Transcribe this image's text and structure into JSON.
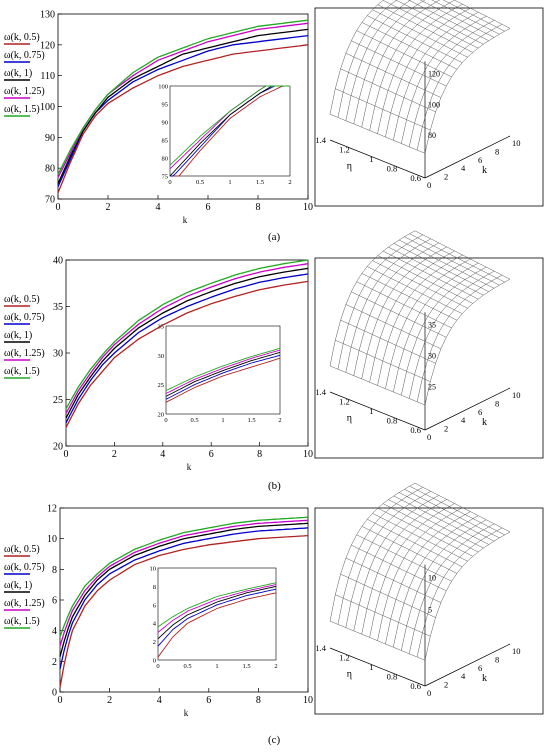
{
  "panel_labels": [
    "(a)",
    "(b)",
    "(c)"
  ],
  "legend_entries": [
    "ω(k, 0.5)",
    "ω(k, 0.75)",
    "ω(k, 1)",
    "ω(k, 1.25)",
    "ω(k, 1.5)"
  ],
  "series_colors": [
    "#b22222",
    "#0000cc",
    "#000000",
    "#cc00cc",
    "#22aa22"
  ],
  "surface_labels": {
    "a": {
      "eta": "η",
      "k": "k",
      "etaTicks": [
        "1.4",
        "1.2",
        "1",
        "0.8",
        "0.6"
      ],
      "kTicks": [
        "0",
        "2",
        "4",
        "6",
        "8",
        "10"
      ],
      "zTicks": [
        "120",
        "100",
        "80"
      ]
    },
    "b": {
      "eta": "η",
      "k": "k",
      "etaTicks": [
        "1.4",
        "1.2",
        "1",
        "0.8",
        "0.6"
      ],
      "kTicks": [
        "0",
        "2",
        "4",
        "6",
        "8",
        "10"
      ],
      "zTicks": [
        "35",
        "30",
        "25"
      ]
    },
    "c": {
      "eta": "η",
      "k": "k",
      "etaTicks": [
        "1.4",
        "1.2",
        "1",
        "0.8",
        "0.6"
      ],
      "kTicks": [
        "0",
        "2",
        "4",
        "6",
        "8",
        "10"
      ],
      "zTicks": [
        "10",
        "5"
      ]
    }
  },
  "chart_data": [
    {
      "type": "line",
      "panel": "(a)",
      "xlabel": "k",
      "xlim": [
        0,
        10
      ],
      "ylim": [
        70,
        130
      ],
      "xticks": [
        0,
        2,
        4,
        6,
        8,
        10
      ],
      "yticks": [
        70,
        80,
        90,
        100,
        110,
        120,
        130
      ],
      "x": [
        0,
        0.5,
        1,
        1.5,
        2,
        3,
        4,
        5,
        6,
        7,
        8,
        9,
        10
      ],
      "series": [
        {
          "name": "ω(k, 0.5)",
          "values": [
            72,
            82,
            91,
            97,
            101,
            106,
            110,
            113,
            115,
            117,
            118,
            119,
            120
          ]
        },
        {
          "name": "ω(k, 0.75)",
          "values": [
            74,
            83,
            92,
            98,
            102,
            108,
            112,
            115,
            118,
            120,
            121,
            122,
            123
          ]
        },
        {
          "name": "ω(k, 1)",
          "values": [
            75,
            84,
            92,
            98,
            103,
            109,
            113,
            117,
            119,
            121,
            123,
            124,
            125
          ]
        },
        {
          "name": "ω(k, 1.25)",
          "values": [
            77,
            85,
            93,
            99,
            104,
            110,
            115,
            118,
            121,
            123,
            125,
            126,
            127
          ]
        },
        {
          "name": "ω(k, 1.5)",
          "values": [
            78,
            86,
            93,
            99,
            104,
            111,
            116,
            119,
            122,
            124,
            126,
            127,
            128
          ]
        }
      ],
      "inset": {
        "xlim": [
          0,
          2
        ],
        "ylim": [
          75,
          100
        ],
        "xticks": [
          "0",
          "0.5",
          "1",
          "1.5",
          "2"
        ],
        "yticks": [
          "75",
          "80",
          "85",
          "90",
          "95",
          "100"
        ]
      }
    },
    {
      "type": "line",
      "panel": "(b)",
      "xlabel": "k",
      "xlim": [
        0,
        10
      ],
      "ylim": [
        20,
        40
      ],
      "xticks": [
        0,
        2,
        4,
        6,
        8,
        10
      ],
      "yticks": [
        20,
        25,
        30,
        35,
        40
      ],
      "x": [
        0,
        0.5,
        1,
        1.5,
        2,
        3,
        4,
        5,
        6,
        7,
        8,
        9,
        10
      ],
      "series": [
        {
          "name": "ω(k, 0.5)",
          "values": [
            22,
            24.5,
            26.5,
            28,
            29.5,
            31.5,
            33,
            34.3,
            35.3,
            36.1,
            36.8,
            37.3,
            37.7
          ]
        },
        {
          "name": "ω(k, 0.75)",
          "values": [
            22.5,
            25,
            27,
            28.7,
            30,
            32.2,
            33.8,
            35,
            36,
            36.9,
            37.6,
            38.1,
            38.5
          ]
        },
        {
          "name": "ω(k, 1)",
          "values": [
            23,
            25.5,
            27.4,
            29.1,
            30.5,
            32.7,
            34.3,
            35.6,
            36.6,
            37.5,
            38.2,
            38.7,
            39.1
          ]
        },
        {
          "name": "ω(k, 1.25)",
          "values": [
            23.5,
            25.9,
            27.8,
            29.5,
            30.9,
            33.1,
            34.8,
            36.1,
            37.1,
            38,
            38.7,
            39.2,
            39.6
          ]
        },
        {
          "name": "ω(k, 1.5)",
          "values": [
            24,
            26.3,
            28.2,
            29.8,
            31.2,
            33.5,
            35.2,
            36.5,
            37.5,
            38.4,
            39.1,
            39.6,
            40
          ]
        }
      ],
      "inset": {
        "xlim": [
          0,
          2
        ],
        "ylim": [
          20,
          35
        ],
        "xticks": [
          "0",
          "0.5",
          "1",
          "1.5",
          "2"
        ],
        "yticks": [
          "20",
          "25",
          "30",
          "35"
        ]
      }
    },
    {
      "type": "line",
      "panel": "(c)",
      "xlabel": "k",
      "xlim": [
        0,
        10
      ],
      "ylim": [
        0,
        12
      ],
      "xticks": [
        0,
        2,
        4,
        6,
        8,
        10
      ],
      "yticks": [
        0,
        2,
        4,
        6,
        8,
        10,
        12
      ],
      "x": [
        0,
        0.25,
        0.5,
        1,
        1.5,
        2,
        3,
        4,
        5,
        6,
        7,
        8,
        9,
        10
      ],
      "series": [
        {
          "name": "ω(k, 0.5)",
          "values": [
            0.3,
            2.5,
            4.0,
            5.6,
            6.6,
            7.3,
            8.3,
            8.9,
            9.3,
            9.6,
            9.8,
            10.0,
            10.1,
            10.2
          ]
        },
        {
          "name": "ω(k, 0.75)",
          "values": [
            1.5,
            3.3,
            4.5,
            6.0,
            7.0,
            7.7,
            8.6,
            9.2,
            9.7,
            10.0,
            10.3,
            10.5,
            10.6,
            10.7
          ]
        },
        {
          "name": "ω(k, 1)",
          "values": [
            2.3,
            3.8,
            4.9,
            6.3,
            7.3,
            8.0,
            8.9,
            9.5,
            10.0,
            10.3,
            10.6,
            10.8,
            10.9,
            11.0
          ]
        },
        {
          "name": "ω(k, 1.25)",
          "values": [
            3.0,
            4.3,
            5.3,
            6.6,
            7.5,
            8.2,
            9.1,
            9.7,
            10.2,
            10.5,
            10.8,
            11.0,
            11.1,
            11.2
          ]
        },
        {
          "name": "ω(k, 1.5)",
          "values": [
            3.6,
            4.7,
            5.6,
            6.9,
            7.7,
            8.4,
            9.3,
            9.9,
            10.4,
            10.7,
            11.0,
            11.2,
            11.3,
            11.4
          ]
        }
      ],
      "inset": {
        "xlim": [
          0,
          2
        ],
        "ylim": [
          0,
          10
        ],
        "xticks": [
          "0",
          "0.5",
          "1",
          "1.5",
          "2"
        ],
        "yticks": [
          "0",
          "2",
          "4",
          "6",
          "8",
          "10"
        ]
      }
    }
  ]
}
